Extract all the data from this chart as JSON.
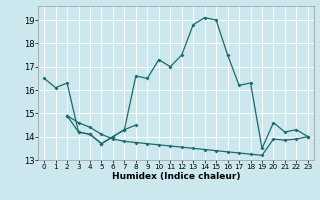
{
  "title": "",
  "xlabel": "Humidex (Indice chaleur)",
  "background_color": "#cce8ee",
  "grid_color": "#ffffff",
  "line_color": "#1a6b6b",
  "ylim": [
    13,
    19.6
  ],
  "xlim": [
    -0.5,
    23.5
  ],
  "yticks": [
    13,
    14,
    15,
    16,
    17,
    18,
    19
  ],
  "xticks": [
    0,
    1,
    2,
    3,
    4,
    5,
    6,
    7,
    8,
    9,
    10,
    11,
    12,
    13,
    14,
    15,
    16,
    17,
    18,
    19,
    20,
    21,
    22,
    23
  ],
  "series1": [
    16.5,
    16.1,
    16.3,
    14.2,
    14.1,
    13.7,
    14.0,
    14.3,
    16.6,
    16.5,
    17.3,
    17.0,
    17.5,
    18.8,
    19.1,
    19.0,
    17.5,
    16.2,
    16.3,
    13.5,
    14.6,
    14.2,
    14.3,
    14.0
  ],
  "series2_x": [
    2,
    3,
    4,
    5,
    6,
    7,
    8
  ],
  "series2_y": [
    14.9,
    14.2,
    14.1,
    13.7,
    14.0,
    14.3,
    14.5
  ],
  "series3_x": [
    2,
    3,
    4,
    5,
    6,
    7,
    8,
    9,
    10,
    11,
    12,
    13,
    14,
    15,
    16,
    17,
    18,
    19,
    20,
    21,
    22,
    23
  ],
  "series3_y": [
    14.9,
    14.6,
    14.4,
    14.1,
    13.9,
    13.8,
    13.75,
    13.7,
    13.65,
    13.6,
    13.55,
    13.5,
    13.45,
    13.4,
    13.35,
    13.3,
    13.25,
    13.2,
    13.9,
    13.85,
    13.9,
    14.0
  ]
}
